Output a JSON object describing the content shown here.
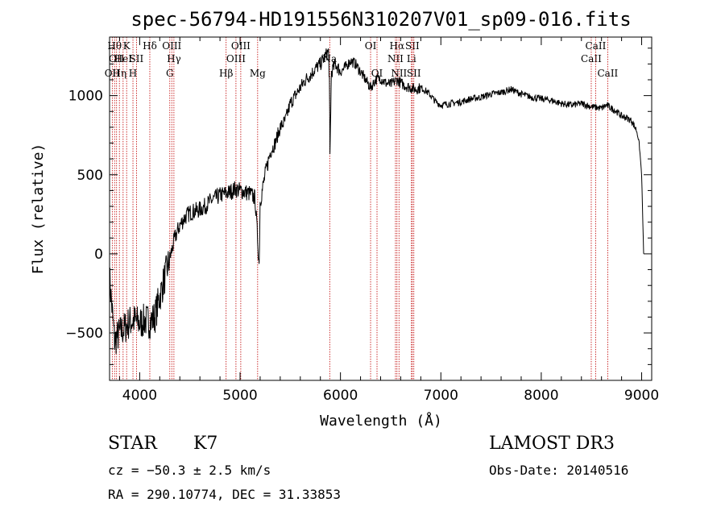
{
  "chart_data": {
    "type": "line",
    "title": "spec-56794-HD191556N310207V01_sp09-016.fits",
    "xlabel": "Wavelength (Å)",
    "ylabel": "Flux (relative)",
    "xlim": [
      3700,
      9100
    ],
    "ylim": [
      -800,
      1370
    ],
    "xticks": [
      4000,
      5000,
      6000,
      7000,
      8000,
      9000
    ],
    "xtick_labels": [
      "4000",
      "5000",
      "6000",
      "7000",
      "8000",
      "9000"
    ],
    "yticks": [
      -500,
      0,
      500,
      1000
    ],
    "ytick_labels": [
      "−500",
      "0",
      "500",
      "1000"
    ],
    "grid": false,
    "series": [
      {
        "x": [
          3700,
          3750,
          3800,
          3850,
          3900,
          3950,
          4000,
          4050,
          4100,
          4150,
          4200,
          4250,
          4300,
          4350,
          4400,
          4450,
          4500,
          4550,
          4600,
          4650,
          4700,
          4750,
          4800,
          4850,
          4900,
          4950,
          5000,
          5050,
          5100,
          5150,
          5190,
          5200,
          5250,
          5300,
          5350,
          5400,
          5450,
          5500,
          5550,
          5600,
          5650,
          5700,
          5750,
          5800,
          5850,
          5880,
          5890,
          5895,
          5900,
          5910,
          5950,
          6000,
          6050,
          6100,
          6150,
          6200,
          6250,
          6300,
          6350,
          6400,
          6450,
          6500,
          6563,
          6600,
          6650,
          6700,
          6750,
          6800,
          6850,
          6900,
          6950,
          7000,
          7100,
          7200,
          7300,
          7400,
          7500,
          7600,
          7700,
          7800,
          7900,
          8000,
          8100,
          8200,
          8300,
          8400,
          8500,
          8600,
          8650,
          8700,
          8750,
          8800,
          8850,
          8900,
          8950,
          8975,
          9000,
          9020
        ],
        "y": [
          -150,
          -550,
          -500,
          -470,
          -430,
          -420,
          -440,
          -420,
          -430,
          -400,
          -270,
          -150,
          -30,
          100,
          180,
          230,
          260,
          270,
          280,
          300,
          330,
          350,
          370,
          380,
          390,
          410,
          400,
          390,
          380,
          350,
          -70,
          330,
          500,
          640,
          700,
          800,
          840,
          950,
          1000,
          1050,
          1100,
          1130,
          1170,
          1200,
          1250,
          1280,
          1100,
          600,
          800,
          1150,
          1200,
          1150,
          1180,
          1220,
          1200,
          1150,
          1100,
          1050,
          1100,
          1110,
          1080,
          1070,
          1100,
          1080,
          1060,
          1050,
          1040,
          1050,
          1030,
          1000,
          960,
          940,
          950,
          960,
          980,
          990,
          1010,
          1020,
          1040,
          1010,
          990,
          980,
          970,
          950,
          940,
          950,
          930,
          920,
          940,
          920,
          900,
          870,
          860,
          840,
          780,
          700,
          500,
          0
        ]
      }
    ],
    "line_markers": [
      {
        "x": 3727,
        "tier": 2,
        "label": "OII"
      },
      {
        "x": 3750,
        "tier": 0,
        "label": "Hθ"
      },
      {
        "x": 3770,
        "tier": 1,
        "label": "OII"
      },
      {
        "x": 3798,
        "tier": 2,
        "label": "Hη"
      },
      {
        "x": 3835,
        "tier": 1,
        "label": "HeI"
      },
      {
        "x": 3870,
        "tier": 0,
        "label": "K"
      },
      {
        "x": 3933,
        "tier": 2,
        "label": "H"
      },
      {
        "x": 3968,
        "tier": 1,
        "label": "SII"
      },
      {
        "x": 4101,
        "tier": 0,
        "label": "Hδ"
      },
      {
        "x": 4300,
        "tier": 2,
        "label": "G"
      },
      {
        "x": 4320,
        "tier": 0,
        "label": "OIII"
      },
      {
        "x": 4341,
        "tier": 1,
        "label": "Hγ"
      },
      {
        "x": 4861,
        "tier": 2,
        "label": "Hβ"
      },
      {
        "x": 4959,
        "tier": 1,
        "label": "OIII"
      },
      {
        "x": 5007,
        "tier": 0,
        "label": "OIII"
      },
      {
        "x": 5175,
        "tier": 2,
        "label": "Mg"
      },
      {
        "x": 5893,
        "tier": 1,
        "label": "Na"
      },
      {
        "x": 6300,
        "tier": 0,
        "label": "OI"
      },
      {
        "x": 6364,
        "tier": 2,
        "label": "OI"
      },
      {
        "x": 6548,
        "tier": 1,
        "label": "NII"
      },
      {
        "x": 6563,
        "tier": 0,
        "label": "Hα"
      },
      {
        "x": 6583,
        "tier": 2,
        "label": "NII"
      },
      {
        "x": 6707,
        "tier": 1,
        "label": "Li"
      },
      {
        "x": 6716,
        "tier": 0,
        "label": "SII"
      },
      {
        "x": 6731,
        "tier": 2,
        "label": "SII"
      },
      {
        "x": 8498,
        "tier": 1,
        "label": "CaII"
      },
      {
        "x": 8542,
        "tier": 0,
        "label": "CaII"
      },
      {
        "x": 8662,
        "tier": 2,
        "label": "CaII"
      }
    ]
  },
  "info": {
    "object_class": "STAR",
    "subclass": "K7",
    "survey": "LAMOST DR3",
    "redshift": "cz = −50.3 ± 2.5 km/s",
    "obs_date": "Obs-Date: 20140516",
    "coords": "RA = 290.10774, DEC =  31.33853"
  }
}
